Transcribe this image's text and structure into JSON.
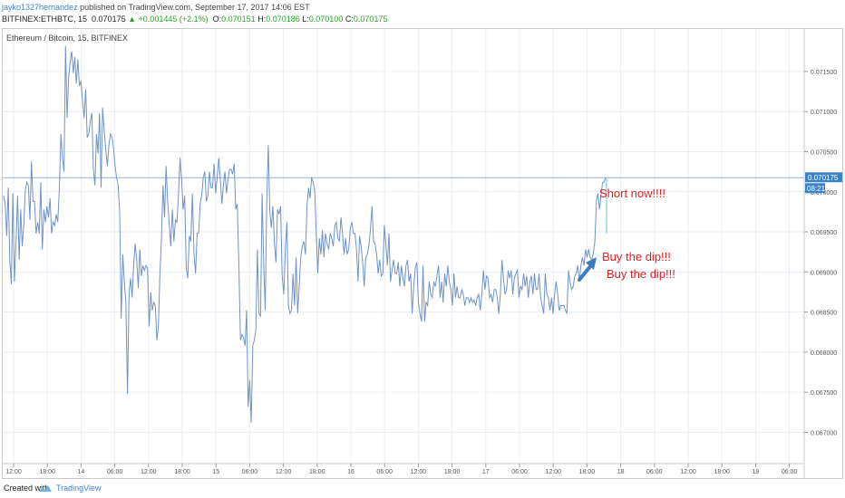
{
  "header": {
    "author": "jayko1327hernandez",
    "published_text": "published on TradingView.com, September 17, 2017 14:06 EST",
    "ticker": "BITFINEX:ETHBTC, 15",
    "last": "0.070175",
    "change": "+0.001445 (+2.1%)",
    "o_label": "O:",
    "o": "0.070151",
    "h_label": "H:",
    "h": "0.070186",
    "l_label": "L:",
    "l": "0.070100",
    "c_label": "C:",
    "c": "0.070175"
  },
  "chart_title": "Ethereum / Bitcoin, 15, BITFINEX",
  "annotations": {
    "short": "Short now!!!!",
    "buy1": "Buy the dip!!!",
    "buy2": "Buy the dip!!!"
  },
  "price_badge": "0.070175",
  "countdown_badge": "08:21",
  "colors": {
    "line": "#6f92c8",
    "grid": "#e9eef4",
    "hline": "#8fb2e0",
    "badge": "#3b83c8",
    "annotation_text": "#e02020",
    "arrow": "#3b7bc0",
    "marker": "#5bc8d6"
  },
  "footer": {
    "created_with": "Created with",
    "brand": "TradingView"
  },
  "chart_data": {
    "type": "line",
    "title": "Ethereum / Bitcoin, 15, BITFINEX",
    "y_ticks": [
      "0.071500",
      "0.071000",
      "0.070500",
      "0.070000",
      "0.069500",
      "0.069000",
      "0.068500",
      "0.068000",
      "0.067500",
      "0.067000"
    ],
    "x_ticks": [
      "12:00",
      "18:00",
      "14",
      "06:00",
      "12:00",
      "18:00",
      "15",
      "06:00",
      "12:00",
      "18:00",
      "16",
      "06:00",
      "12:00",
      "18:00",
      "17",
      "06:00",
      "12:00",
      "18:00",
      "18",
      "06:00",
      "12:00",
      "18:00",
      "19",
      "06:00"
    ],
    "ylim": [
      0.06661,
      0.07203
    ],
    "last_price": 0.070175,
    "series": [
      {
        "values": [
          0.06995,
          0.06985,
          0.06945,
          0.07005,
          0.06915,
          0.06885,
          0.06998,
          0.06888,
          0.06938,
          0.06995,
          0.06915,
          0.06978,
          0.06932,
          0.06958,
          0.07002,
          0.07012,
          0.07008,
          0.06965,
          0.07038,
          0.06988,
          0.06988,
          0.06948,
          0.06962,
          0.06948,
          0.07012,
          0.06928,
          0.06978,
          0.06962,
          0.06982,
          0.06968,
          0.06992,
          0.06948,
          0.06962,
          0.06958,
          0.06972,
          0.06962,
          0.07002,
          0.07072,
          0.07042,
          0.07025,
          0.07182,
          0.07092,
          0.07142,
          0.07162,
          0.07175,
          0.07148,
          0.07168,
          0.07135,
          0.07165,
          0.07132,
          0.07138,
          0.07112,
          0.07092,
          0.07128,
          0.07068,
          0.07072,
          0.07088,
          0.07098,
          0.07028,
          0.07008,
          0.07072,
          0.07048,
          0.07098,
          0.07005,
          0.07105,
          0.07075,
          0.07052,
          0.07032,
          0.07058,
          0.07072,
          0.07068,
          0.07055,
          0.07032,
          0.07018,
          0.07008,
          0.06975,
          0.06842,
          0.06922,
          0.06888,
          0.06862,
          0.06748,
          0.06872,
          0.06892,
          0.06868,
          0.06908,
          0.06935,
          0.06915,
          0.0688,
          0.06928,
          0.06895,
          0.06908,
          0.06902,
          0.06908,
          0.06905,
          0.06832,
          0.06875,
          0.06852,
          0.06862,
          0.06858,
          0.06815,
          0.06832,
          0.06898,
          0.06942,
          0.07008,
          0.06968,
          0.07032,
          0.06988,
          0.06962,
          0.06932,
          0.06978,
          0.06938,
          0.06965,
          0.06962,
          0.06998,
          0.07042,
          0.07015,
          0.06978,
          0.06995,
          0.06905,
          0.06892,
          0.06945,
          0.06938,
          0.06998,
          0.06922,
          0.06898,
          0.06948,
          0.06948,
          0.06985,
          0.06995,
          0.07018,
          0.07025,
          0.06988,
          0.06995,
          0.07025,
          0.07005,
          0.07005,
          0.07035,
          0.06998,
          0.07018,
          0.07042,
          0.07015,
          0.06985,
          0.07008,
          0.07025,
          0.06998,
          0.07015,
          0.07028,
          0.07028,
          0.07022,
          0.07035,
          0.06978,
          0.06985,
          0.06908,
          0.06815,
          0.06822,
          0.06818,
          0.06808,
          0.06852,
          0.06732,
          0.06765,
          0.06712,
          0.06808,
          0.06815,
          0.06828,
          0.06928,
          0.06848,
          0.06845,
          0.06998,
          0.06912,
          0.06852,
          0.06988,
          0.07058,
          0.06975,
          0.06955,
          0.06982,
          0.06935,
          0.06912,
          0.06978,
          0.06972,
          0.06982,
          0.06895,
          0.06872,
          0.06928,
          0.06962,
          0.06858,
          0.06848,
          0.06852,
          0.06898,
          0.06858,
          0.06918,
          0.06848,
          0.06882,
          0.06918,
          0.06932,
          0.06938,
          0.06922,
          0.06982,
          0.07005,
          0.06992,
          0.07018,
          0.07012,
          0.07002,
          0.06948,
          0.06898,
          0.06942,
          0.06922,
          0.06952,
          0.06918,
          0.06948,
          0.06935,
          0.06928,
          0.06948,
          0.06942,
          0.06932,
          0.06958,
          0.06962,
          0.06942,
          0.06938,
          0.06968,
          0.06948,
          0.06922,
          0.06942,
          0.06922,
          0.06928,
          0.06955,
          0.06962,
          0.06948,
          0.06948,
          0.06928,
          0.06888,
          0.06945,
          0.06932,
          0.06912,
          0.06882,
          0.06918,
          0.06922,
          0.06932,
          0.06952,
          0.06982,
          0.06938,
          0.06935,
          0.06922,
          0.06898,
          0.06915,
          0.06895,
          0.06898,
          0.06958,
          0.06935,
          0.06908,
          0.06948,
          0.06888,
          0.06902,
          0.06915,
          0.06898,
          0.06898,
          0.06912,
          0.06882,
          0.06908,
          0.06892,
          0.06882,
          0.06908,
          0.06915,
          0.06888,
          0.06898,
          0.06848,
          0.06882,
          0.06905,
          0.06912,
          0.06862,
          0.06848,
          0.06838,
          0.06908,
          0.06838,
          0.06862,
          0.06858,
          0.06888,
          0.06872,
          0.06868,
          0.06888,
          0.06882,
          0.06895,
          0.06908,
          0.06868,
          0.06888,
          0.06862,
          0.06898,
          0.06882,
          0.06908,
          0.06888,
          0.06878,
          0.06858,
          0.06898,
          0.06868,
          0.06882,
          0.06868,
          0.06868,
          0.06878,
          0.06872,
          0.06858,
          0.06868,
          0.06868,
          0.06862,
          0.06868,
          0.06862,
          0.06865,
          0.06858,
          0.06868,
          0.06872,
          0.06852,
          0.06872,
          0.06902,
          0.06878,
          0.06895,
          0.06892,
          0.06868,
          0.06872,
          0.06862,
          0.06878,
          0.06878,
          0.06868,
          0.06848,
          0.06872,
          0.06915,
          0.06892,
          0.06872,
          0.06878,
          0.06902,
          0.06892,
          0.06902,
          0.06872,
          0.06892,
          0.06898,
          0.06902,
          0.06868,
          0.06882,
          0.06878,
          0.06898,
          0.06882,
          0.06895,
          0.06868,
          0.06888,
          0.06895,
          0.06872,
          0.06898,
          0.06878,
          0.06878,
          0.06898,
          0.06868,
          0.06858,
          0.06848,
          0.06898,
          0.06872,
          0.06868,
          0.06852,
          0.06868,
          0.06848,
          0.06872,
          0.06888,
          0.06872,
          0.06852,
          0.06858,
          0.06858,
          0.06858,
          0.06852,
          0.06848,
          0.06902,
          0.06888,
          0.06878,
          0.06882,
          0.06895,
          0.06898,
          0.06908,
          0.06888,
          0.06908,
          0.06918,
          0.06908,
          0.06928,
          0.06918,
          0.06928,
          0.06918,
          0.06915,
          0.06922,
          0.06938,
          0.06988,
          0.06998,
          0.06978,
          0.06995,
          0.07012,
          0.07012,
          0.07018
        ]
      }
    ]
  }
}
